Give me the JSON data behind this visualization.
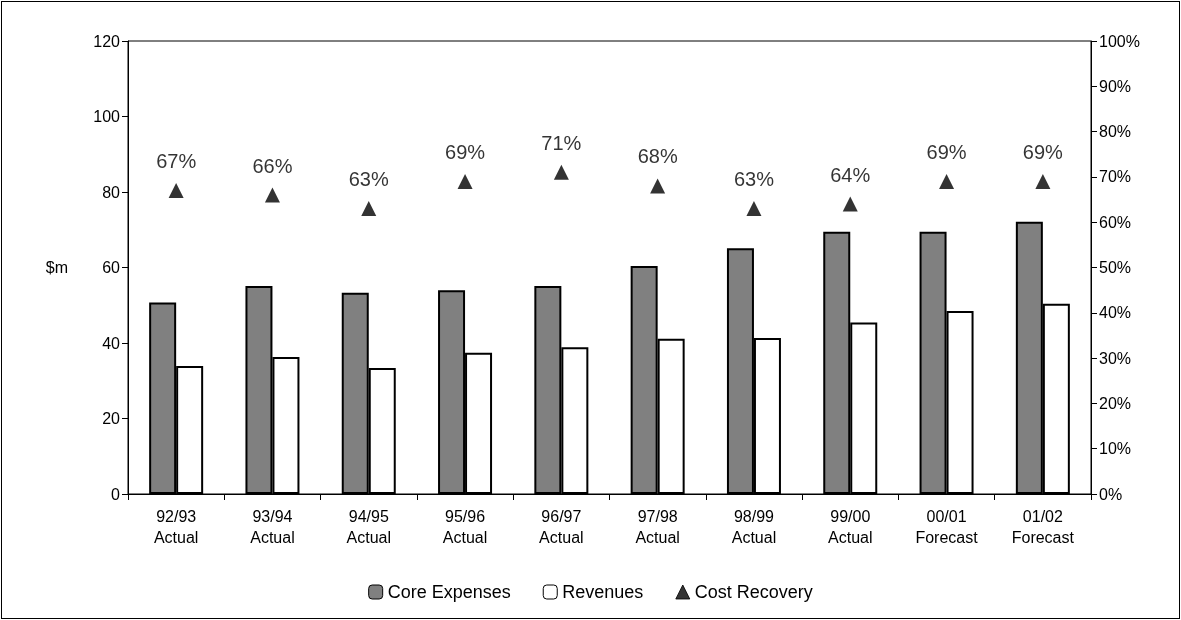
{
  "chart_data": {
    "type": "bar",
    "ylabel": "$m",
    "categories": [
      "92/93\nActual",
      "93/94\nActual",
      "94/95\nActual",
      "95/96\nActual",
      "96/97\nActual",
      "97/98\nActual",
      "98/99\nActual",
      "99/00\nActual",
      "00/01\nForecast",
      "01/02\nForecast"
    ],
    "series": [
      {
        "name": "Core Expenses",
        "color": "#808080",
        "values": [
          50.7,
          55.1,
          53.3,
          54.0,
          55.1,
          60.4,
          65.1,
          69.5,
          69.5,
          72.1
        ]
      },
      {
        "name": "Revenues",
        "color": "#ffffff",
        "values": [
          33.9,
          36.3,
          33.4,
          37.4,
          38.9,
          41.1,
          41.3,
          45.4,
          48.5,
          50.4
        ]
      },
      {
        "name": "Cost Recovery",
        "type": "scatter",
        "axis": "y2",
        "marker": "triangle",
        "color": "#000000",
        "values": [
          67,
          66,
          63,
          69,
          71,
          68,
          63,
          64,
          69,
          69
        ],
        "value_labels": [
          "67%",
          "66%",
          "63%",
          "69%",
          "71%",
          "68%",
          "63%",
          "64%",
          "69%",
          "69%"
        ]
      }
    ],
    "ylim": [
      0,
      120
    ],
    "yticks": [
      0,
      20,
      40,
      60,
      80,
      100,
      120
    ],
    "y2lim": [
      0,
      100
    ],
    "y2ticks": [
      {
        "value": 0,
        "label": "0%"
      },
      {
        "value": 10,
        "label": "10%"
      },
      {
        "value": 20,
        "label": "20%"
      },
      {
        "value": 30,
        "label": "30%"
      },
      {
        "value": 40,
        "label": "40%"
      },
      {
        "value": 50,
        "label": "50%"
      },
      {
        "value": 60,
        "label": "60%"
      },
      {
        "value": 70,
        "label": "70%"
      },
      {
        "value": 80,
        "label": "80%"
      },
      {
        "value": 90,
        "label": "90%"
      },
      {
        "value": 100,
        "label": "100%"
      }
    ],
    "grid": false,
    "legend": "bottom"
  }
}
